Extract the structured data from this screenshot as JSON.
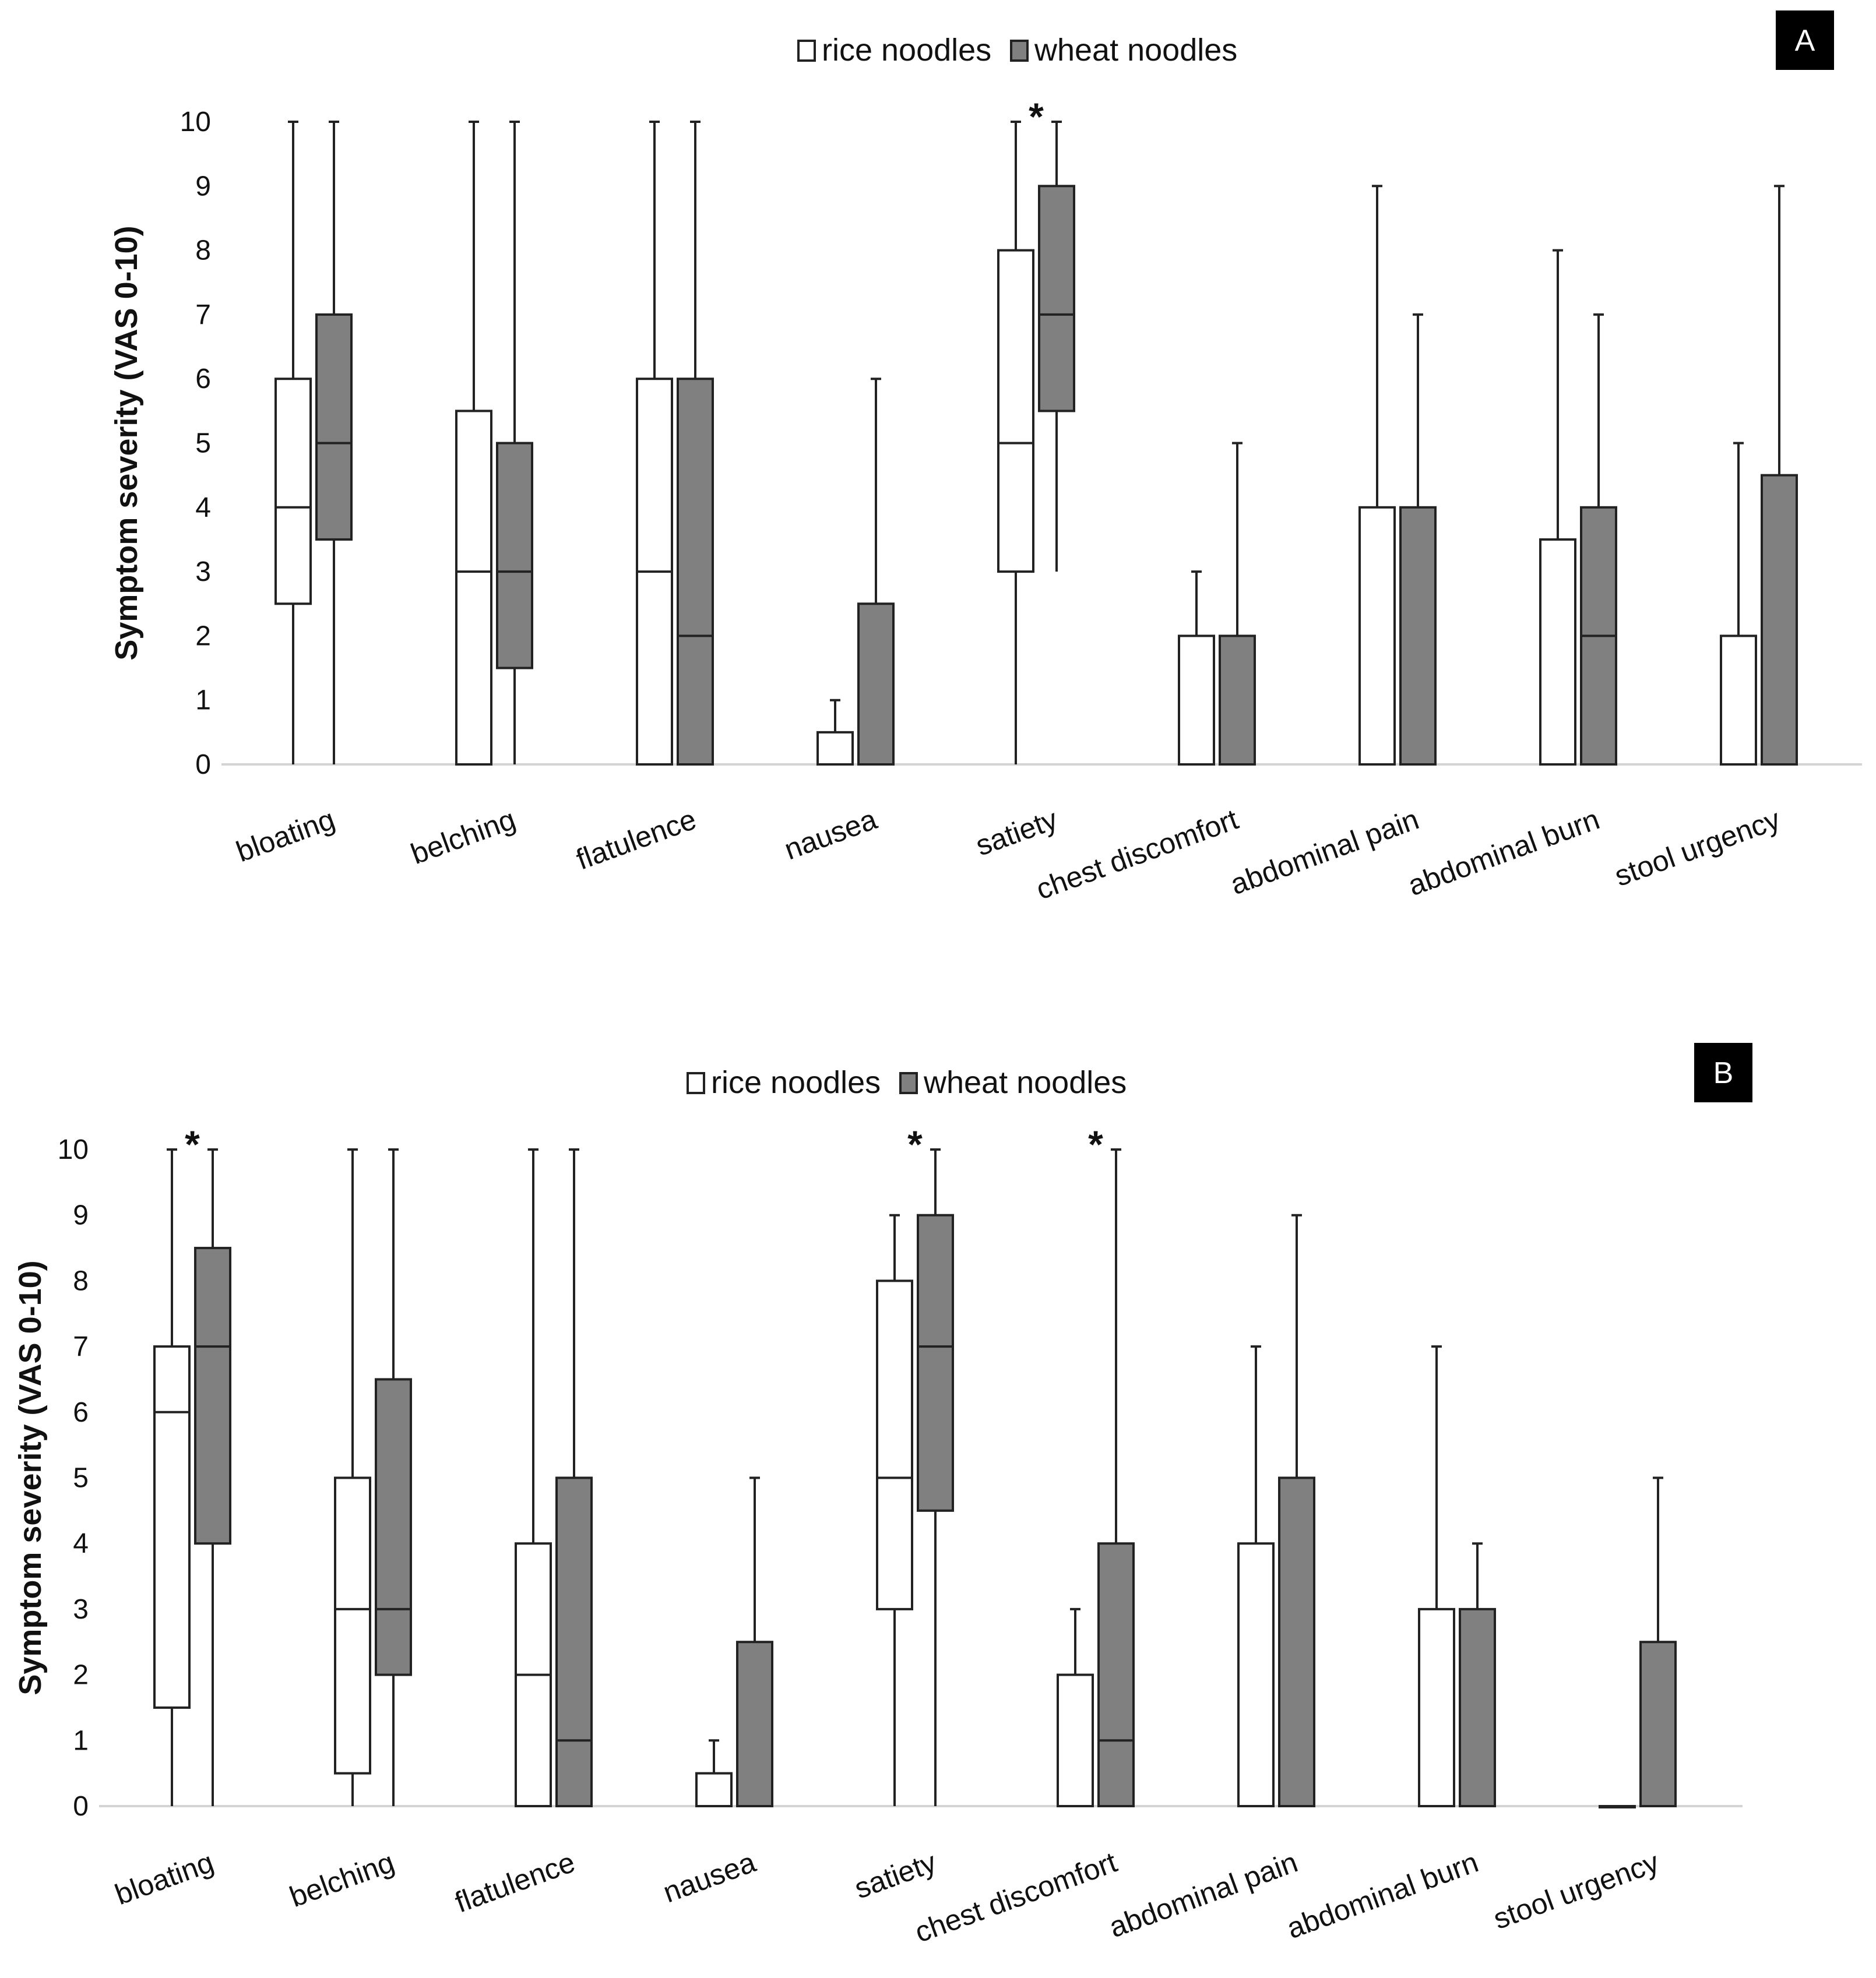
{
  "chart_data": [
    {
      "type": "box",
      "panel": "A",
      "title": "",
      "xlabel": "",
      "ylabel": "Symptom severity (VAS 0-10)",
      "ylim": [
        0,
        10
      ],
      "yticks": [
        "0",
        "1",
        "2",
        "3",
        "4",
        "5",
        "6",
        "7",
        "8",
        "9",
        "10"
      ],
      "legend": [
        "rice noodles",
        "wheat noodles"
      ],
      "legend_position": "top-center",
      "colors": {
        "rice noodles": "#ffffff",
        "wheat noodles": "#808080"
      },
      "categories": [
        "bloating",
        "belching",
        "flatulence",
        "nausea",
        "satiety",
        "chest discomfort",
        "abdominal pain",
        "abdominal burn",
        "stool urgency"
      ],
      "series": [
        {
          "name": "rice noodles",
          "boxes": [
            {
              "min": 0,
              "q1": 2.5,
              "median": 4,
              "q3": 6,
              "max": 10
            },
            {
              "min": 0,
              "q1": 0,
              "median": 3,
              "q3": 5.5,
              "max": 10
            },
            {
              "min": 0,
              "q1": 0,
              "median": 3,
              "q3": 6,
              "max": 10
            },
            {
              "min": 0,
              "q1": 0,
              "median": 0,
              "q3": 0.5,
              "max": 1
            },
            {
              "min": 0,
              "q1": 3,
              "median": 5,
              "q3": 8,
              "max": 10
            },
            {
              "min": 0,
              "q1": 0,
              "median": 0,
              "q3": 2,
              "max": 3
            },
            {
              "min": 0,
              "q1": 0,
              "median": 0,
              "q3": 4,
              "max": 9
            },
            {
              "min": 0,
              "q1": 0,
              "median": 0,
              "q3": 3.5,
              "max": 8
            },
            {
              "min": 0,
              "q1": 0,
              "median": 0,
              "q3": 2,
              "max": 5
            }
          ]
        },
        {
          "name": "wheat noodles",
          "boxes": [
            {
              "min": 0,
              "q1": 3.5,
              "median": 5,
              "q3": 7,
              "max": 10
            },
            {
              "min": 0,
              "q1": 1.5,
              "median": 3,
              "q3": 5,
              "max": 10
            },
            {
              "min": 0,
              "q1": 0,
              "median": 2,
              "q3": 6,
              "max": 10
            },
            {
              "min": 0,
              "q1": 0,
              "median": 0,
              "q3": 2.5,
              "max": 6
            },
            {
              "min": 3,
              "q1": 5.5,
              "median": 7,
              "q3": 9,
              "max": 10
            },
            {
              "min": 0,
              "q1": 0,
              "median": 0,
              "q3": 2,
              "max": 5
            },
            {
              "min": 0,
              "q1": 0,
              "median": 0,
              "q3": 4,
              "max": 7
            },
            {
              "min": 0,
              "q1": 0,
              "median": 2,
              "q3": 4,
              "max": 7
            },
            {
              "min": 0,
              "q1": 0,
              "median": 0,
              "q3": 4.5,
              "max": 9
            }
          ]
        }
      ],
      "significance": [
        {
          "category": "satiety",
          "marker": "*"
        }
      ]
    },
    {
      "type": "box",
      "panel": "B",
      "title": "",
      "xlabel": "",
      "ylabel": "Symptom severity (VAS 0-10)",
      "ylim": [
        0,
        10
      ],
      "yticks": [
        "0",
        "1",
        "2",
        "3",
        "4",
        "5",
        "6",
        "7",
        "8",
        "9",
        "10"
      ],
      "legend": [
        "rice noodles",
        "wheat noodles"
      ],
      "legend_position": "top-center",
      "colors": {
        "rice noodles": "#ffffff",
        "wheat noodles": "#808080"
      },
      "categories": [
        "bloating",
        "belching",
        "flatulence",
        "nausea",
        "satiety",
        "chest discomfort",
        "abdominal pain",
        "abdominal burn",
        "stool urgency"
      ],
      "series": [
        {
          "name": "rice noodles",
          "boxes": [
            {
              "min": 0,
              "q1": 1.5,
              "median": 6,
              "q3": 7,
              "max": 10
            },
            {
              "min": 0,
              "q1": 0.5,
              "median": 3,
              "q3": 5,
              "max": 10
            },
            {
              "min": 0,
              "q1": 0,
              "median": 2,
              "q3": 4,
              "max": 10
            },
            {
              "min": 0,
              "q1": 0,
              "median": 0,
              "q3": 0.5,
              "max": 1
            },
            {
              "min": 0,
              "q1": 3,
              "median": 5,
              "q3": 8,
              "max": 9
            },
            {
              "min": 0,
              "q1": 0,
              "median": 0,
              "q3": 2,
              "max": 3
            },
            {
              "min": 0,
              "q1": 0,
              "median": 0,
              "q3": 4,
              "max": 7
            },
            {
              "min": 0,
              "q1": 0,
              "median": 0,
              "q3": 3,
              "max": 7
            },
            {
              "min": 0,
              "q1": 0,
              "median": 0,
              "q3": 0,
              "max": 0
            }
          ]
        },
        {
          "name": "wheat noodles",
          "boxes": [
            {
              "min": 0,
              "q1": 4,
              "median": 7,
              "q3": 8.5,
              "max": 10
            },
            {
              "min": 0,
              "q1": 2,
              "median": 3,
              "q3": 6.5,
              "max": 10
            },
            {
              "min": 0,
              "q1": 0,
              "median": 1,
              "q3": 5,
              "max": 10
            },
            {
              "min": 0,
              "q1": 0,
              "median": 0,
              "q3": 2.5,
              "max": 5
            },
            {
              "min": 0,
              "q1": 4.5,
              "median": 7,
              "q3": 9,
              "max": 10
            },
            {
              "min": 0,
              "q1": 0,
              "median": 1,
              "q3": 4,
              "max": 10
            },
            {
              "min": 0,
              "q1": 0,
              "median": 0,
              "q3": 5,
              "max": 9
            },
            {
              "min": 0,
              "q1": 0,
              "median": 0,
              "q3": 3,
              "max": 4
            },
            {
              "min": 0,
              "q1": 0,
              "median": 0,
              "q3": 2.5,
              "max": 5
            }
          ]
        }
      ],
      "significance": [
        {
          "category": "bloating",
          "marker": "*"
        },
        {
          "category": "satiety",
          "marker": "*"
        },
        {
          "category": "chest discomfort",
          "marker": "*"
        }
      ]
    }
  ]
}
